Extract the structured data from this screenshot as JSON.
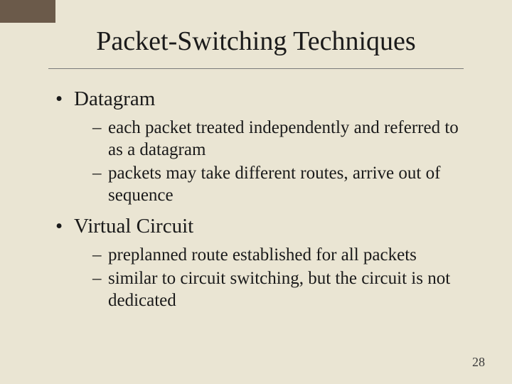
{
  "slide": {
    "background_color": "#eae5d3",
    "corner_tab_color": "#6b5a4a",
    "title": "Packet-Switching Techniques",
    "title_fontsize": 38,
    "title_color": "#1a1a1a",
    "rule_color": "#7a7a7a",
    "bullets": [
      {
        "label": "Datagram",
        "fontsize": 29,
        "sub": [
          "each packet treated independently and referred to as a datagram",
          "packets may take different routes, arrive out of sequence"
        ],
        "sub_fontsize": 25
      },
      {
        "label": "Virtual Circuit",
        "fontsize": 29,
        "sub": [
          "preplanned route established for all packets",
          "similar to circuit switching, but the circuit is not dedicated"
        ],
        "sub_fontsize": 25
      }
    ],
    "page_number": "28",
    "page_number_fontsize": 18,
    "font_family": "Times New Roman"
  }
}
